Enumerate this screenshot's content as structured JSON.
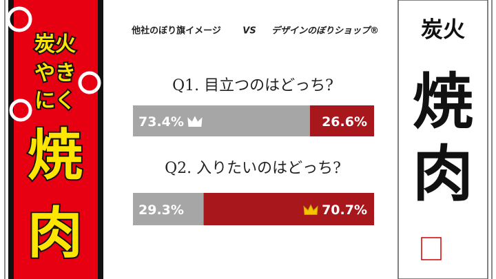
{
  "chart_data": {
    "type": "stacked-bar-h",
    "vs_label": "VS",
    "categories": [
      "Q1. 目立つのはどっち?",
      "Q2.  入りたいのはどっち?"
    ],
    "series": [
      {
        "name": "他社のぼり旗イメージ",
        "color": "#a6a6a6",
        "values": [
          73.4,
          29.3
        ],
        "value_labels": [
          "73.4%",
          "29.3%"
        ]
      },
      {
        "name": "デザインのぼりショップ®",
        "color": "#a8171b",
        "values": [
          26.6,
          70.7
        ],
        "value_labels": [
          "26.6%",
          "70.7%"
        ]
      }
    ],
    "xlim": [
      0,
      100
    ]
  },
  "left_banner": {
    "lines": [
      "炭火",
      "やき",
      "にく",
      "焼",
      "肉"
    ]
  },
  "right_banner": {
    "lines": [
      "炭火",
      "焼",
      "肉"
    ]
  }
}
